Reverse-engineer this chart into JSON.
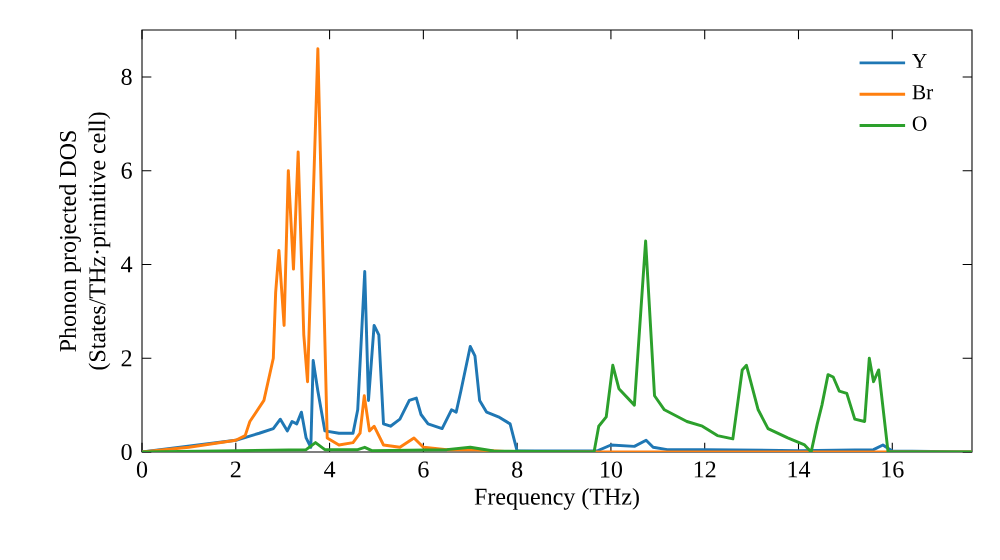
{
  "chart_data": {
    "type": "line",
    "xlabel": "Frequency (THz)",
    "ylabel": "Phonon projected DOS\n(States/THz·primitive cell)",
    "xlim": [
      0,
      17.7
    ],
    "ylim": [
      0,
      9
    ],
    "xticks": [
      0,
      2,
      4,
      6,
      8,
      10,
      12,
      14,
      16
    ],
    "yticks": [
      0,
      2,
      4,
      6,
      8
    ],
    "legend": "top right",
    "grid": false,
    "marker": "none",
    "line_style": "solid",
    "series": [
      {
        "name": "Y",
        "color": "#1f77b4",
        "x": [
          0,
          1,
          2,
          2.5,
          2.8,
          2.95,
          3.1,
          3.2,
          3.3,
          3.4,
          3.5,
          3.6,
          3.65,
          3.75,
          3.9,
          4.2,
          4.5,
          4.6,
          4.75,
          4.83,
          4.95,
          5.05,
          5.15,
          5.3,
          5.5,
          5.7,
          5.85,
          5.95,
          6.1,
          6.4,
          6.6,
          6.7,
          6.8,
          7.0,
          7.1,
          7.2,
          7.35,
          7.6,
          7.85,
          8.0,
          9.7,
          10.0,
          10.5,
          10.75,
          10.9,
          11.2,
          12,
          14,
          15.6,
          15.8,
          16.0,
          17.7
        ],
        "values": [
          0,
          null,
          0.25,
          0.4,
          0.5,
          0.7,
          0.45,
          0.65,
          0.6,
          0.85,
          0.3,
          0.1,
          1.95,
          1.3,
          0.45,
          0.4,
          0.4,
          0.9,
          3.85,
          1.1,
          2.7,
          2.5,
          0.6,
          0.55,
          0.7,
          1.1,
          1.15,
          0.8,
          0.6,
          0.5,
          0.9,
          0.85,
          1.3,
          2.25,
          2.05,
          1.1,
          0.85,
          0.75,
          0.6,
          0.02,
          0.02,
          0.15,
          0.12,
          0.25,
          0.1,
          0.05,
          0.05,
          0.03,
          0.05,
          0.15,
          0.02,
          0
        ]
      },
      {
        "name": "Br",
        "color": "#ff7f0e",
        "x": [
          0,
          1,
          2,
          2.2,
          2.3,
          2.6,
          2.8,
          2.85,
          2.92,
          3.03,
          3.12,
          3.23,
          3.33,
          3.45,
          3.53,
          3.75,
          3.95,
          4.2,
          4.5,
          4.65,
          4.74,
          4.85,
          4.95,
          5.15,
          5.5,
          5.8,
          6.0,
          6.5,
          7.0,
          8.0,
          17.7
        ],
        "values": [
          0,
          0.1,
          0.25,
          0.35,
          0.65,
          1.1,
          2.0,
          3.4,
          4.3,
          2.7,
          6.0,
          3.9,
          6.4,
          2.5,
          1.5,
          8.6,
          0.3,
          0.15,
          0.2,
          0.4,
          1.2,
          0.45,
          0.55,
          0.15,
          0.1,
          0.3,
          0.1,
          0.05,
          0.05,
          0,
          0
        ]
      },
      {
        "name": "O",
        "color": "#2ca02c",
        "x": [
          0,
          3.5,
          3.7,
          3.9,
          4.6,
          4.75,
          4.9,
          6.5,
          7.0,
          7.5,
          9.64,
          9.74,
          9.9,
          10.04,
          10.17,
          10.5,
          10.74,
          10.93,
          11.14,
          11.62,
          11.95,
          12.27,
          12.6,
          12.8,
          12.89,
          13.14,
          13.35,
          13.77,
          14.13,
          14.27,
          14.4,
          14.5,
          14.63,
          14.74,
          14.87,
          15.03,
          15.2,
          15.41,
          15.51,
          15.6,
          15.71,
          15.91,
          17.7
        ],
        "values": [
          0,
          0.05,
          0.2,
          0.05,
          0.05,
          0.1,
          0.03,
          0.05,
          0.1,
          0.02,
          0,
          0.55,
          0.75,
          1.85,
          1.35,
          1.0,
          4.5,
          1.2,
          0.9,
          0.65,
          0.55,
          0.35,
          0.28,
          1.75,
          1.85,
          0.9,
          0.5,
          0.3,
          0.15,
          0,
          0.6,
          1.0,
          1.65,
          1.6,
          1.3,
          1.25,
          0.7,
          0.65,
          2.0,
          1.5,
          1.75,
          0,
          0
        ]
      }
    ]
  }
}
